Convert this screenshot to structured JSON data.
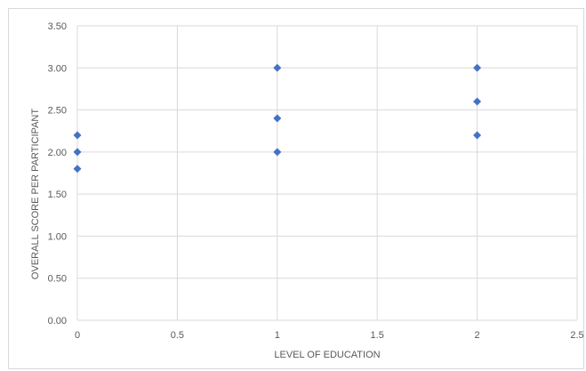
{
  "chart_data": {
    "type": "scatter",
    "title": "",
    "xlabel": "LEVEL OF EDUCATION",
    "ylabel": "OVERALL SCORE PER PARTICIPANT",
    "xlim": [
      0,
      2.5
    ],
    "ylim": [
      0,
      3.5
    ],
    "x_ticks": [
      0,
      0.5,
      1,
      1.5,
      2,
      2.5
    ],
    "x_tick_labels": [
      "0",
      "0.5",
      "1",
      "1.5",
      "2",
      "2.5"
    ],
    "y_ticks": [
      0,
      0.5,
      1,
      1.5,
      2,
      2.5,
      3,
      3.5
    ],
    "y_tick_labels": [
      "0.00",
      "0.50",
      "1.00",
      "1.50",
      "2.00",
      "2.50",
      "3.00",
      "3.50"
    ],
    "grid": true,
    "marker": "diamond",
    "series": [
      {
        "color": "#4472c4",
        "points": [
          {
            "x": 0,
            "y": 2.2
          },
          {
            "x": 0,
            "y": 2.0
          },
          {
            "x": 0,
            "y": 1.8
          },
          {
            "x": 1,
            "y": 3.0
          },
          {
            "x": 1,
            "y": 2.4
          },
          {
            "x": 1,
            "y": 2.0
          },
          {
            "x": 2,
            "y": 3.0
          },
          {
            "x": 2,
            "y": 2.6
          },
          {
            "x": 2,
            "y": 2.2
          }
        ]
      }
    ],
    "colors": {
      "gridline": "#d9d9d9",
      "text": "#595959"
    }
  }
}
